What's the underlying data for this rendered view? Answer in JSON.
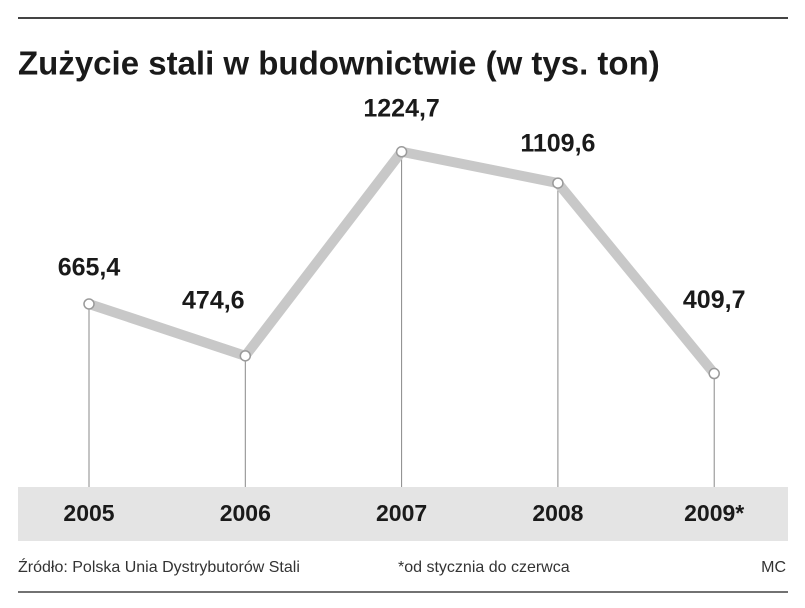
{
  "chart_data": {
    "type": "line",
    "title": "Zużycie stali w budownictwie (w tys. ton)",
    "categories": [
      "2005",
      "2006",
      "2007",
      "2008",
      "2009*"
    ],
    "values": [
      665.4,
      474.6,
      1224.7,
      1109.6,
      409.7
    ],
    "value_labels": [
      "665,4",
      "474,6",
      "1224,7",
      "1109,6",
      "409,7"
    ],
    "color": "#c8c8c8",
    "source": "Źródło: Polska Unia Dystrybutorów Stali",
    "note": "*od stycznia do czerwca",
    "credit": "MC"
  }
}
